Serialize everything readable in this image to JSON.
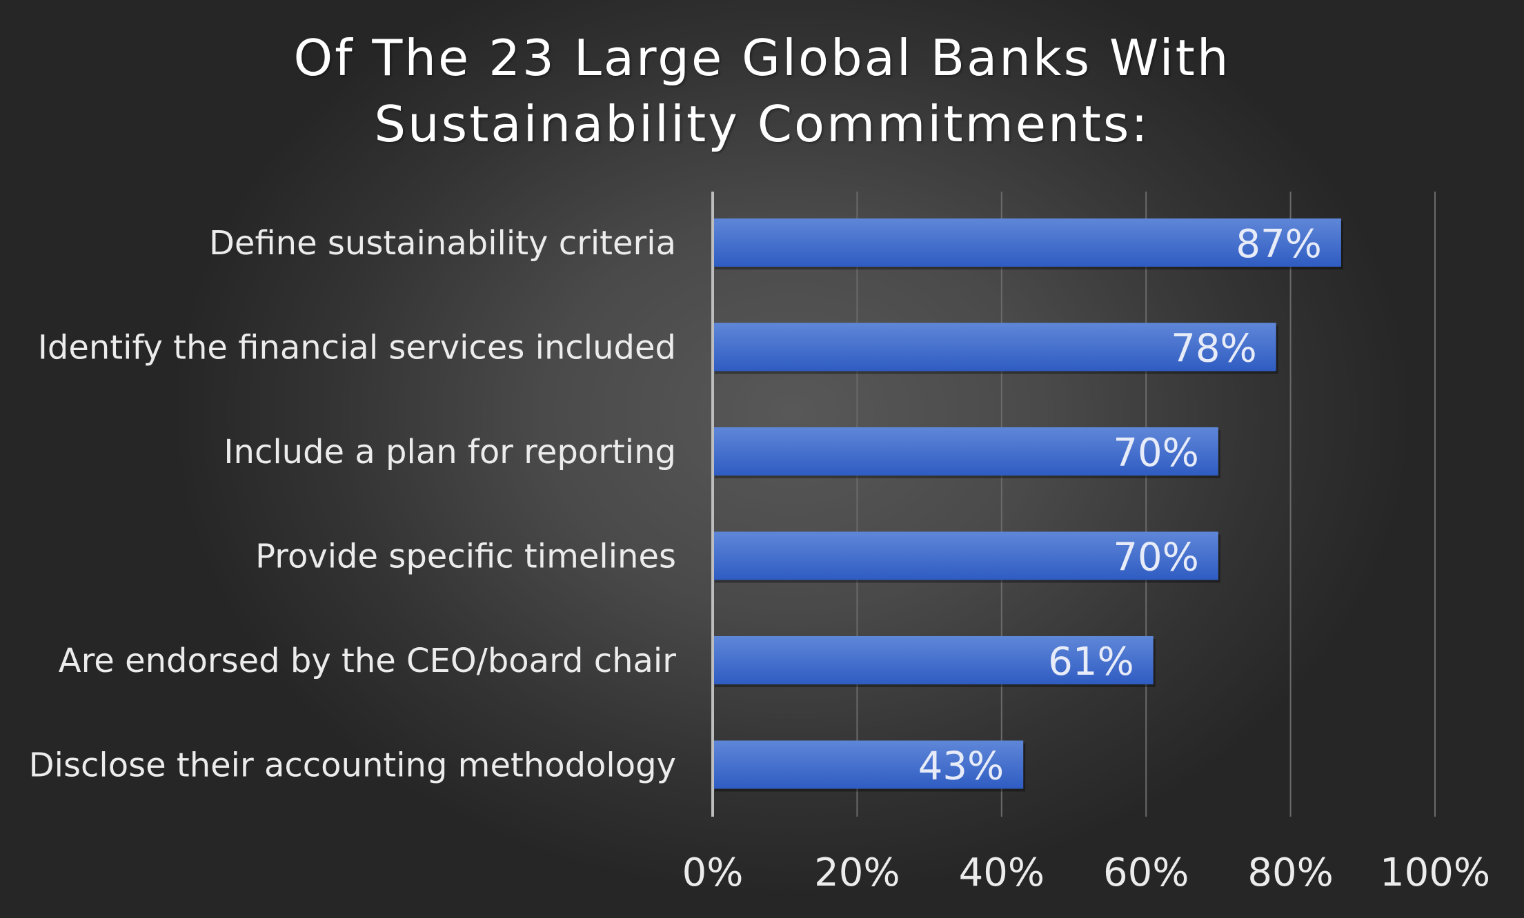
{
  "chart_data": {
    "type": "bar",
    "orientation": "horizontal",
    "title": "Of The 23 Large Global Banks With Sustainability Commitments:",
    "title_lines": [
      "Of The 23 Large Global Banks With",
      "Sustainability Commitments:"
    ],
    "categories": [
      "Define sustainability criteria",
      "Identify the financial services included",
      "Include a plan for reporting",
      "Provide specific timelines",
      "Are endorsed by the CEO/board chair",
      "Disclose their accounting methodology"
    ],
    "values": [
      87,
      78,
      70,
      70,
      61,
      43
    ],
    "data_labels": [
      "87%",
      "78%",
      "70%",
      "70%",
      "61%",
      "43%"
    ],
    "xlim": [
      0,
      100
    ],
    "x_ticks": [
      0,
      20,
      40,
      60,
      80,
      100
    ],
    "x_tick_labels": [
      "0%",
      "20%",
      "40%",
      "60%",
      "80%",
      "100%"
    ],
    "xlabel": "",
    "ylabel": "",
    "grid": "vertical",
    "legend": "none",
    "colors": {
      "bar_top": "#5f87d8",
      "bar_bottom": "#2f5cc2",
      "grid": "#6a6a6a",
      "axis": "#bdbdbd"
    }
  }
}
